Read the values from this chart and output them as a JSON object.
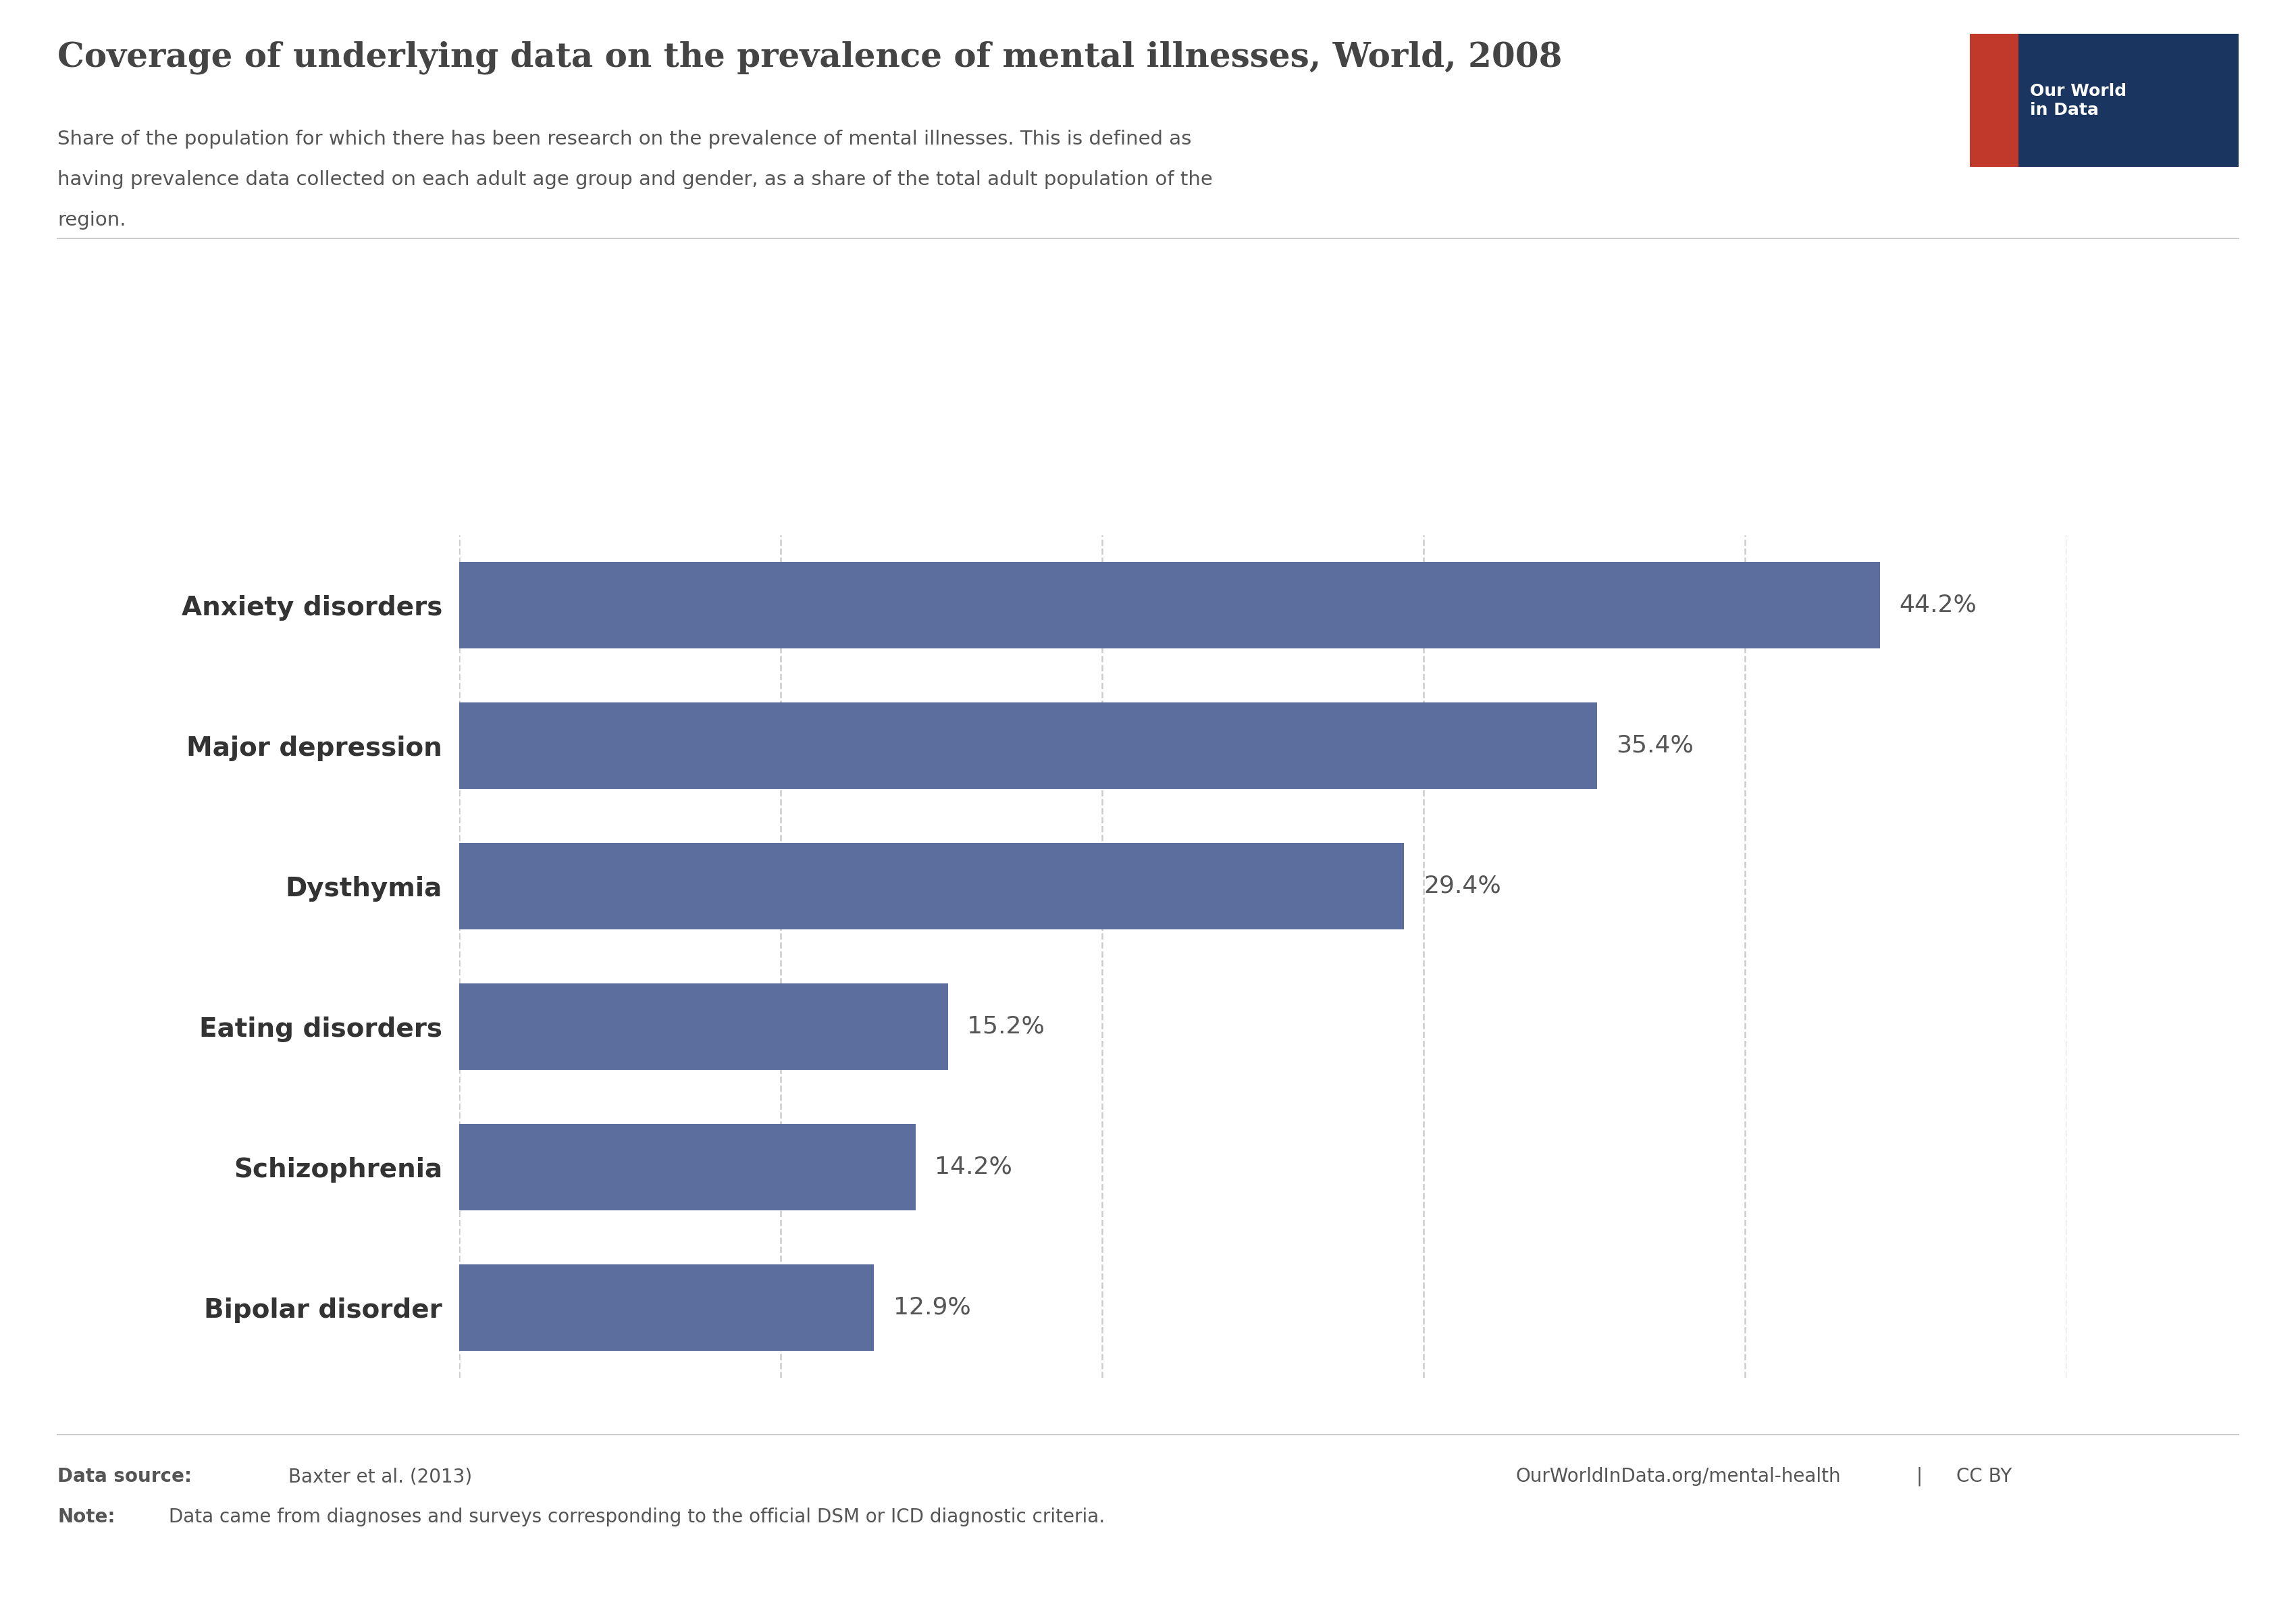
{
  "title": "Coverage of underlying data on the prevalence of mental illnesses, World, 2008",
  "subtitle_line1": "Share of the population for which there has been research on the prevalence of mental illnesses. This is defined as",
  "subtitle_line2": "having prevalence data collected on each adult age group and gender, as a share of the total adult population of the",
  "subtitle_line3": "region.",
  "categories": [
    "Bipolar disorder",
    "Schizophrenia",
    "Eating disorders",
    "Dysthymia",
    "Major depression",
    "Anxiety disorders"
  ],
  "values": [
    12.9,
    14.2,
    15.2,
    29.4,
    35.4,
    44.2
  ],
  "bar_color": "#5c6e9e",
  "background_color": "#ffffff",
  "title_color": "#444444",
  "subtitle_color": "#555555",
  "label_color": "#333333",
  "value_label_color": "#555555",
  "grid_color": "#cccccc",
  "xlim": [
    0,
    50
  ],
  "grid_values": [
    0,
    10,
    20,
    30,
    40,
    50
  ],
  "data_source_bold": "Data source:",
  "data_source_text": " Baxter et al. (2013)",
  "note_bold": "Note:",
  "note_text": " Data came from diagnoses and surveys corresponding to the official DSM or ICD diagnostic criteria.",
  "owid_url": "OurWorldInData.org/mental-health",
  "license": "CC BY",
  "logo_navy": "#1a3560",
  "logo_red": "#c0392b",
  "footer_color": "#555555"
}
